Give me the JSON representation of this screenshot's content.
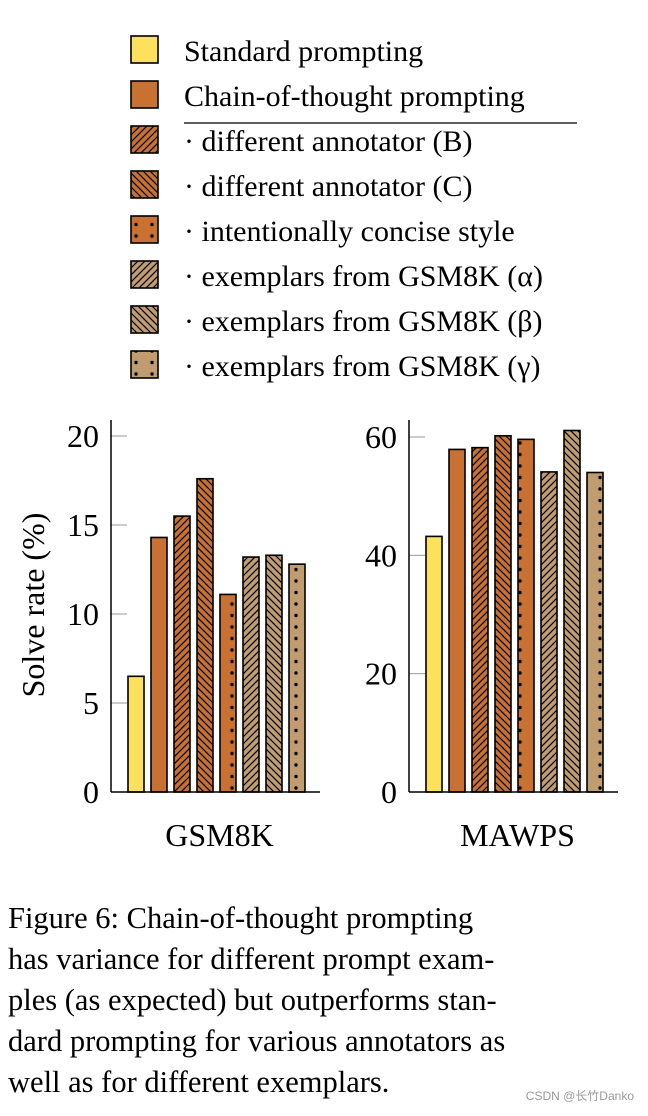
{
  "chart_data": [
    {
      "type": "bar",
      "title": "GSM8K",
      "ylabel": "Solve rate (%)",
      "ylim": [
        0,
        21
      ],
      "yticks": [
        "0",
        "5",
        "10",
        "15",
        "20"
      ],
      "series": [
        {
          "name": "Standard prompting",
          "value": 6.5
        },
        {
          "name": "Chain-of-thought prompting",
          "value": 14.3
        },
        {
          "name": "· different annotator (B)",
          "value": 15.5
        },
        {
          "name": "· different annotator (C)",
          "value": 17.6
        },
        {
          "name": "· intentionally concise style",
          "value": 11.1
        },
        {
          "name": "· exemplars from GSM8K (α)",
          "value": 13.2
        },
        {
          "name": "· exemplars from GSM8K (β)",
          "value": 13.3
        },
        {
          "name": "· exemplars from GSM8K (γ)",
          "value": 12.8
        }
      ]
    },
    {
      "type": "bar",
      "title": "MAWPS",
      "ylabel": "",
      "ylim": [
        0,
        63
      ],
      "yticks": [
        "0",
        "20",
        "40",
        "60"
      ],
      "series": [
        {
          "name": "Standard prompting",
          "value": 43.2
        },
        {
          "name": "Chain-of-thought prompting",
          "value": 57.9
        },
        {
          "name": "· different annotator (B)",
          "value": 58.2
        },
        {
          "name": "· different annotator (C)",
          "value": 60.2
        },
        {
          "name": "· intentionally concise style",
          "value": 59.6
        },
        {
          "name": "· exemplars from GSM8K (α)",
          "value": 54.1
        },
        {
          "name": "· exemplars from GSM8K (β)",
          "value": 61.1
        },
        {
          "name": "· exemplars from GSM8K (γ)",
          "value": 54.0
        }
      ]
    }
  ],
  "legend": {
    "placement": "top",
    "items": [
      {
        "label": "Standard prompting",
        "color": "#FCE15C",
        "pattern": "none"
      },
      {
        "label": "Chain-of-thought prompting",
        "color": "#C87133",
        "pattern": "none"
      },
      {
        "label": "· different annotator (B)",
        "color": "#C87133",
        "pattern": "ne"
      },
      {
        "label": "· different annotator (C)",
        "color": "#C87133",
        "pattern": "nw"
      },
      {
        "label": "· intentionally concise style",
        "color": "#C87133",
        "pattern": "dots"
      },
      {
        "label": "· exemplars from GSM8K (α)",
        "color": "#C19C70",
        "pattern": "ne"
      },
      {
        "label": "· exemplars from GSM8K (β)",
        "color": "#C19C70",
        "pattern": "nw"
      },
      {
        "label": "· exemplars from GSM8K (γ)",
        "color": "#C19C70",
        "pattern": "dots"
      }
    ]
  },
  "caption": {
    "lines": [
      "Figure 6:  Chain-of-thought prompting",
      "has variance for different prompt exam-",
      "ples (as expected) but outperforms stan-",
      "dard prompting for various annotators as",
      "well as for different exemplars."
    ]
  },
  "watermark": "CSDN @长竹Danko"
}
